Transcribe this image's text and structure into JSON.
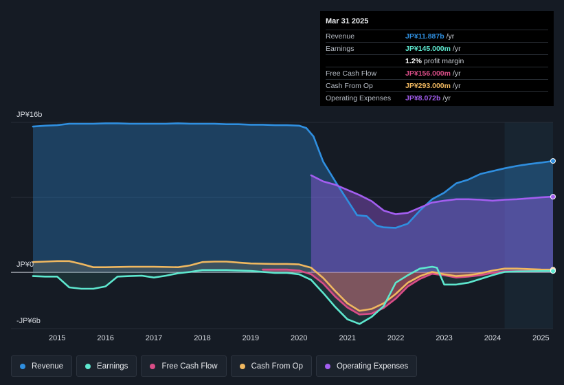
{
  "tooltip": {
    "date": "Mar 31 2025",
    "rows": [
      {
        "label": "Revenue",
        "value": "JP¥11.887b",
        "unit": "/yr",
        "color": "#2f8fe0"
      },
      {
        "label": "Earnings",
        "value": "JP¥145.000m",
        "unit": "/yr",
        "color": "#5ee8cf"
      },
      {
        "label": "",
        "value": "1.2%",
        "unit": "profit margin",
        "color": "#ffffff"
      },
      {
        "label": "Free Cash Flow",
        "value": "JP¥156.000m",
        "unit": "/yr",
        "color": "#d94d87"
      },
      {
        "label": "Cash From Op",
        "value": "JP¥293.000m",
        "unit": "/yr",
        "color": "#f0b860"
      },
      {
        "label": "Operating Expenses",
        "value": "JP¥8.072b",
        "unit": "/yr",
        "color": "#a35ef0"
      }
    ]
  },
  "legend": [
    {
      "label": "Revenue",
      "color": "#2f8fe0"
    },
    {
      "label": "Earnings",
      "color": "#5ee8cf"
    },
    {
      "label": "Free Cash Flow",
      "color": "#d94d87"
    },
    {
      "label": "Cash From Op",
      "color": "#f0b860"
    },
    {
      "label": "Operating Expenses",
      "color": "#a35ef0"
    }
  ],
  "chart_data": {
    "type": "line",
    "y_labels": [
      {
        "label": "JP¥16b",
        "value": 16
      },
      {
        "label": "JP¥0",
        "value": 0
      },
      {
        "label": "-JP¥6b",
        "value": -6
      }
    ],
    "ylim": [
      -6,
      16
    ],
    "xlim": [
      2014.5,
      2025.25
    ],
    "x_ticks": [
      {
        "label": "2015",
        "value": 2015
      },
      {
        "label": "2016",
        "value": 2016
      },
      {
        "label": "2017",
        "value": 2017
      },
      {
        "label": "2018",
        "value": 2018
      },
      {
        "label": "2019",
        "value": 2019
      },
      {
        "label": "2020",
        "value": 2020
      },
      {
        "label": "2021",
        "value": 2021
      },
      {
        "label": "2022",
        "value": 2022
      },
      {
        "label": "2023",
        "value": 2023
      },
      {
        "label": "2024",
        "value": 2024
      },
      {
        "label": "2025",
        "value": 2025
      }
    ],
    "forecast_start": 2024.25,
    "series": [
      {
        "name": "Revenue",
        "color": "#2f8fe0",
        "fill": true,
        "points": [
          [
            2014.5,
            15.55
          ],
          [
            2014.75,
            15.65
          ],
          [
            2015.0,
            15.7
          ],
          [
            2015.25,
            15.85
          ],
          [
            2015.5,
            15.85
          ],
          [
            2015.75,
            15.85
          ],
          [
            2016.0,
            15.9
          ],
          [
            2016.25,
            15.9
          ],
          [
            2016.5,
            15.85
          ],
          [
            2016.75,
            15.85
          ],
          [
            2017.0,
            15.85
          ],
          [
            2017.25,
            15.85
          ],
          [
            2017.5,
            15.9
          ],
          [
            2017.75,
            15.85
          ],
          [
            2018.0,
            15.85
          ],
          [
            2018.25,
            15.85
          ],
          [
            2018.5,
            15.8
          ],
          [
            2018.75,
            15.8
          ],
          [
            2019.0,
            15.75
          ],
          [
            2019.25,
            15.75
          ],
          [
            2019.5,
            15.7
          ],
          [
            2019.75,
            15.7
          ],
          [
            2020.0,
            15.65
          ],
          [
            2020.15,
            15.4
          ],
          [
            2020.3,
            14.5
          ],
          [
            2020.5,
            11.8
          ],
          [
            2020.75,
            9.7
          ],
          [
            2021.0,
            7.7
          ],
          [
            2021.2,
            6.1
          ],
          [
            2021.4,
            6.0
          ],
          [
            2021.6,
            5.0
          ],
          [
            2021.75,
            4.8
          ],
          [
            2022.0,
            4.75
          ],
          [
            2022.25,
            5.2
          ],
          [
            2022.5,
            6.6
          ],
          [
            2022.75,
            7.8
          ],
          [
            2023.0,
            8.5
          ],
          [
            2023.25,
            9.5
          ],
          [
            2023.5,
            9.9
          ],
          [
            2023.75,
            10.5
          ],
          [
            2024.0,
            10.8
          ],
          [
            2024.25,
            11.1
          ],
          [
            2024.5,
            11.35
          ],
          [
            2024.75,
            11.55
          ],
          [
            2025.0,
            11.7
          ],
          [
            2025.25,
            11.887
          ]
        ]
      },
      {
        "name": "Operating Expenses",
        "color": "#a35ef0",
        "fill": true,
        "points": [
          [
            2020.25,
            10.35
          ],
          [
            2020.5,
            9.7
          ],
          [
            2020.75,
            9.35
          ],
          [
            2021.0,
            8.8
          ],
          [
            2021.25,
            8.25
          ],
          [
            2021.5,
            7.6
          ],
          [
            2021.75,
            6.6
          ],
          [
            2022.0,
            6.2
          ],
          [
            2022.25,
            6.35
          ],
          [
            2022.5,
            6.9
          ],
          [
            2022.75,
            7.45
          ],
          [
            2023.0,
            7.65
          ],
          [
            2023.25,
            7.8
          ],
          [
            2023.5,
            7.8
          ],
          [
            2023.75,
            7.75
          ],
          [
            2024.0,
            7.65
          ],
          [
            2024.25,
            7.75
          ],
          [
            2024.5,
            7.8
          ],
          [
            2024.75,
            7.9
          ],
          [
            2025.0,
            8.0
          ],
          [
            2025.25,
            8.072
          ]
        ]
      },
      {
        "name": "Free Cash Flow",
        "color": "#d94d87",
        "fill": true,
        "points": [
          [
            2019.25,
            0.3
          ],
          [
            2019.75,
            0.3
          ],
          [
            2020.0,
            0.2
          ],
          [
            2020.25,
            -0.2
          ],
          [
            2020.5,
            -1.2
          ],
          [
            2020.75,
            -2.6
          ],
          [
            2021.0,
            -3.75
          ],
          [
            2021.25,
            -4.5
          ],
          [
            2021.5,
            -4.4
          ],
          [
            2021.75,
            -3.8
          ],
          [
            2022.0,
            -2.8
          ],
          [
            2022.25,
            -1.5
          ],
          [
            2022.5,
            -0.7
          ],
          [
            2022.75,
            -0.15
          ],
          [
            2023.0,
            -0.3
          ],
          [
            2023.25,
            -0.55
          ],
          [
            2023.5,
            -0.45
          ],
          [
            2023.75,
            -0.3
          ],
          [
            2024.0,
            -0.05
          ],
          [
            2024.25,
            0.1
          ],
          [
            2024.5,
            0.13
          ],
          [
            2024.75,
            0.15
          ],
          [
            2025.0,
            0.15
          ],
          [
            2025.25,
            0.156
          ]
        ]
      },
      {
        "name": "Cash From Op",
        "color": "#f0b860",
        "fill": true,
        "points": [
          [
            2014.5,
            1.1
          ],
          [
            2014.75,
            1.15
          ],
          [
            2015.0,
            1.2
          ],
          [
            2015.25,
            1.2
          ],
          [
            2015.5,
            0.9
          ],
          [
            2015.75,
            0.55
          ],
          [
            2016.0,
            0.55
          ],
          [
            2016.5,
            0.6
          ],
          [
            2017.0,
            0.6
          ],
          [
            2017.5,
            0.55
          ],
          [
            2017.75,
            0.75
          ],
          [
            2018.0,
            1.1
          ],
          [
            2018.25,
            1.15
          ],
          [
            2018.5,
            1.15
          ],
          [
            2018.75,
            1.05
          ],
          [
            2019.0,
            0.95
          ],
          [
            2019.5,
            0.9
          ],
          [
            2019.75,
            0.9
          ],
          [
            2020.0,
            0.85
          ],
          [
            2020.25,
            0.5
          ],
          [
            2020.5,
            -0.6
          ],
          [
            2020.75,
            -2.0
          ],
          [
            2021.0,
            -3.3
          ],
          [
            2021.25,
            -4.1
          ],
          [
            2021.5,
            -3.9
          ],
          [
            2021.75,
            -3.3
          ],
          [
            2022.0,
            -2.3
          ],
          [
            2022.25,
            -1.1
          ],
          [
            2022.5,
            -0.4
          ],
          [
            2022.75,
            0.05
          ],
          [
            2023.0,
            -0.2
          ],
          [
            2023.25,
            -0.4
          ],
          [
            2023.5,
            -0.3
          ],
          [
            2023.75,
            -0.1
          ],
          [
            2024.0,
            0.2
          ],
          [
            2024.25,
            0.4
          ],
          [
            2024.5,
            0.4
          ],
          [
            2024.75,
            0.35
          ],
          [
            2025.0,
            0.3
          ],
          [
            2025.25,
            0.293
          ]
        ]
      },
      {
        "name": "Earnings",
        "color": "#5ee8cf",
        "fill": true,
        "points": [
          [
            2014.5,
            -0.4
          ],
          [
            2014.75,
            -0.45
          ],
          [
            2015.0,
            -0.45
          ],
          [
            2015.25,
            -1.6
          ],
          [
            2015.5,
            -1.75
          ],
          [
            2015.75,
            -1.75
          ],
          [
            2016.0,
            -1.5
          ],
          [
            2016.25,
            -0.45
          ],
          [
            2016.5,
            -0.4
          ],
          [
            2016.75,
            -0.35
          ],
          [
            2017.0,
            -0.55
          ],
          [
            2017.25,
            -0.35
          ],
          [
            2017.5,
            -0.1
          ],
          [
            2017.75,
            0.05
          ],
          [
            2018.0,
            0.25
          ],
          [
            2018.5,
            0.25
          ],
          [
            2019.0,
            0.15
          ],
          [
            2019.25,
            0.05
          ],
          [
            2019.5,
            -0.05
          ],
          [
            2019.75,
            -0.05
          ],
          [
            2020.0,
            -0.2
          ],
          [
            2020.25,
            -0.8
          ],
          [
            2020.5,
            -2.2
          ],
          [
            2020.75,
            -3.7
          ],
          [
            2021.0,
            -5.0
          ],
          [
            2021.25,
            -5.5
          ],
          [
            2021.5,
            -4.75
          ],
          [
            2021.75,
            -3.6
          ],
          [
            2022.0,
            -1.1
          ],
          [
            2022.25,
            -0.3
          ],
          [
            2022.5,
            0.4
          ],
          [
            2022.75,
            0.6
          ],
          [
            2022.85,
            0.5
          ],
          [
            2023.0,
            -1.3
          ],
          [
            2023.25,
            -1.3
          ],
          [
            2023.5,
            -1.1
          ],
          [
            2023.75,
            -0.7
          ],
          [
            2024.0,
            -0.3
          ],
          [
            2024.25,
            0.05
          ],
          [
            2024.5,
            0.1
          ],
          [
            2024.75,
            0.12
          ],
          [
            2025.0,
            0.14
          ],
          [
            2025.25,
            0.145
          ]
        ]
      }
    ]
  }
}
